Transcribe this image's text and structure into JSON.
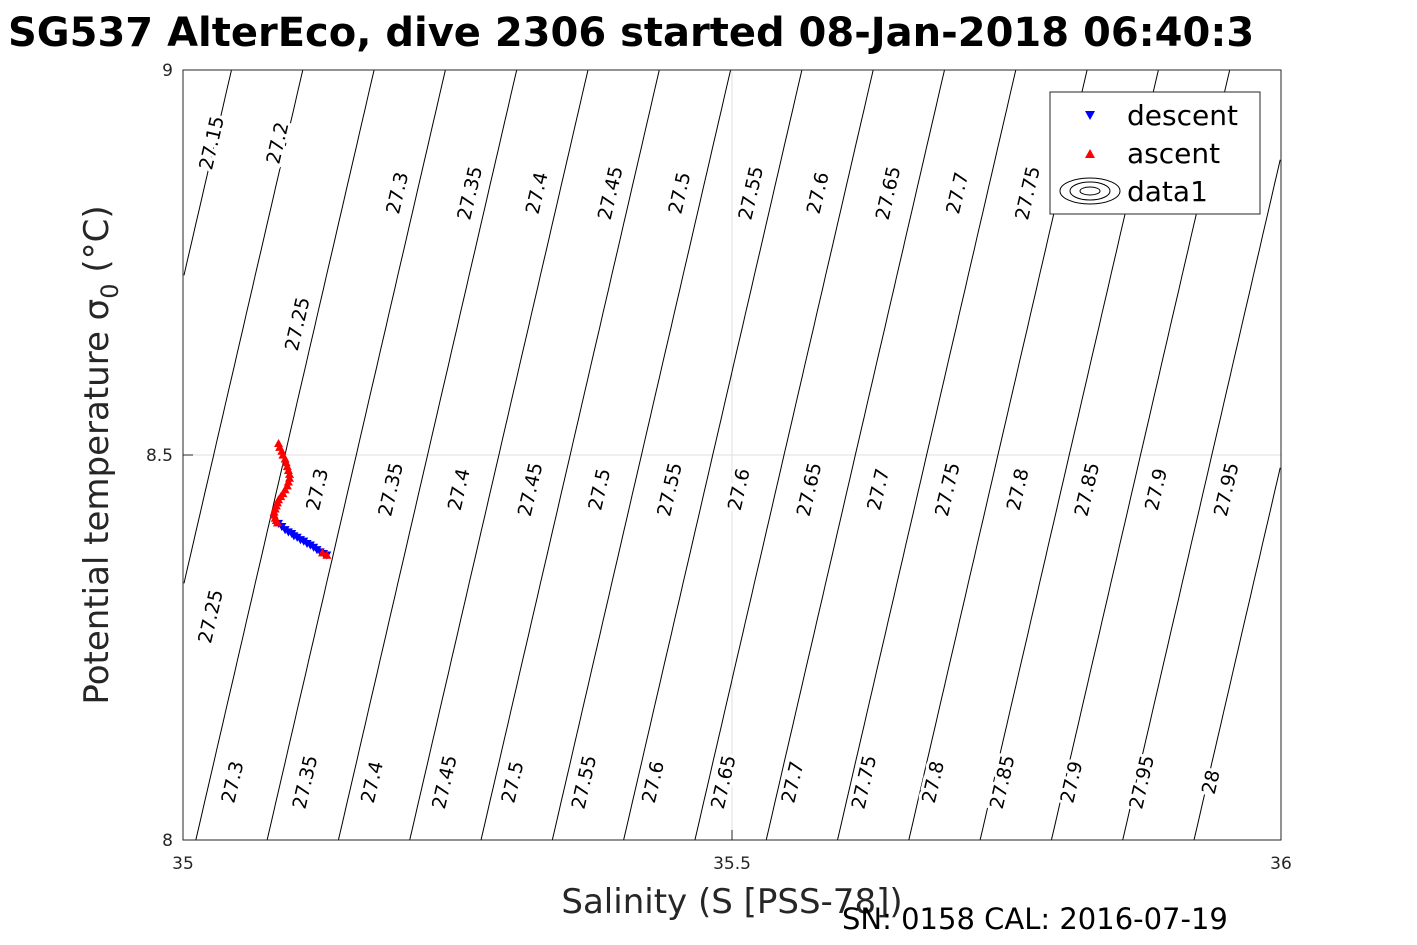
{
  "title": "SG537 AlterEco, dive 2306 started 08-Jan-2018 06:40:3",
  "footer": "SN: 0158  CAL: 2016-07-19",
  "colors": {
    "descent": "#0000ff",
    "ascent": "#ff0000",
    "contour": "#000000",
    "grid": "#dfdfdf"
  },
  "chart_data": {
    "type": "scatter",
    "xlabel": "Salinity (S [PSS-78])",
    "ylabel_main": "Potential temperature ",
    "ylabel_sigma": "σ",
    "ylabel_sub": "0",
    "ylabel_unit": " (°C)",
    "xlim": [
      35,
      36
    ],
    "ylim": [
      8,
      9
    ],
    "xticks": [
      35,
      35.5,
      36
    ],
    "xtick_labels": [
      "35",
      "35.5",
      "36"
    ],
    "yticks": [
      8,
      8.5,
      9
    ],
    "ytick_labels": [
      "8",
      "8.5",
      "9"
    ],
    "grid": true,
    "legend_position": "top-right",
    "legend": [
      {
        "label": "descent",
        "marker": "triangle-down",
        "color": "#0000ff"
      },
      {
        "label": "ascent",
        "marker": "triangle-up",
        "color": "#ff0000"
      },
      {
        "label": "data1",
        "marker": "contour"
      }
    ],
    "contour_levels": [
      27.15,
      27.2,
      27.25,
      27.3,
      27.35,
      27.4,
      27.45,
      27.5,
      27.55,
      27.6,
      27.65,
      27.7,
      27.75,
      27.8,
      27.85,
      27.9,
      27.95,
      28
    ],
    "contour_labels": [
      {
        "text": "27.15",
        "s": 35.027,
        "t": 8.905
      },
      {
        "text": "27.2",
        "s": 35.087,
        "t": 8.905
      },
      {
        "text": "27.3",
        "s": 35.196,
        "t": 8.84
      },
      {
        "text": "27.35",
        "s": 35.262,
        "t": 8.84
      },
      {
        "text": "27.4",
        "s": 35.323,
        "t": 8.84
      },
      {
        "text": "27.45",
        "s": 35.39,
        "t": 8.84
      },
      {
        "text": "27.5",
        "s": 35.453,
        "t": 8.84
      },
      {
        "text": "27.55",
        "s": 35.518,
        "t": 8.84
      },
      {
        "text": "27.6",
        "s": 35.579,
        "t": 8.84
      },
      {
        "text": "27.65",
        "s": 35.643,
        "t": 8.84
      },
      {
        "text": "27.7",
        "s": 35.706,
        "t": 8.84
      },
      {
        "text": "27.75",
        "s": 35.77,
        "t": 8.84
      },
      {
        "text": "27.25",
        "s": 35.105,
        "t": 8.67
      },
      {
        "text": "27.3",
        "s": 35.123,
        "t": 8.455
      },
      {
        "text": "27.35",
        "s": 35.19,
        "t": 8.455
      },
      {
        "text": "27.4",
        "s": 35.252,
        "t": 8.455
      },
      {
        "text": "27.45",
        "s": 35.317,
        "t": 8.455
      },
      {
        "text": "27.5",
        "s": 35.38,
        "t": 8.455
      },
      {
        "text": "27.55",
        "s": 35.444,
        "t": 8.455
      },
      {
        "text": "27.6",
        "s": 35.507,
        "t": 8.455
      },
      {
        "text": "27.65",
        "s": 35.571,
        "t": 8.455
      },
      {
        "text": "27.7",
        "s": 35.634,
        "t": 8.455
      },
      {
        "text": "27.75",
        "s": 35.697,
        "t": 8.455
      },
      {
        "text": "27.8",
        "s": 35.761,
        "t": 8.455
      },
      {
        "text": "27.85",
        "s": 35.824,
        "t": 8.455
      },
      {
        "text": "27.9",
        "s": 35.887,
        "t": 8.455
      },
      {
        "text": "27.95",
        "s": 35.951,
        "t": 8.455
      },
      {
        "text": "27.25",
        "s": 35.026,
        "t": 8.29
      },
      {
        "text": "27.3",
        "s": 35.046,
        "t": 8.075
      },
      {
        "text": "27.35",
        "s": 35.112,
        "t": 8.075
      },
      {
        "text": "27.4",
        "s": 35.173,
        "t": 8.075
      },
      {
        "text": "27.45",
        "s": 35.239,
        "t": 8.075
      },
      {
        "text": "27.5",
        "s": 35.301,
        "t": 8.075
      },
      {
        "text": "27.55",
        "s": 35.366,
        "t": 8.075
      },
      {
        "text": "27.6",
        "s": 35.429,
        "t": 8.075
      },
      {
        "text": "27.65",
        "s": 35.493,
        "t": 8.075
      },
      {
        "text": "27.7",
        "s": 35.556,
        "t": 8.075
      },
      {
        "text": "27.75",
        "s": 35.621,
        "t": 8.075
      },
      {
        "text": "27.8",
        "s": 35.684,
        "t": 8.075
      },
      {
        "text": "27.85",
        "s": 35.747,
        "t": 8.075
      },
      {
        "text": "27.9",
        "s": 35.81,
        "t": 8.075
      },
      {
        "text": "27.95",
        "s": 35.874,
        "t": 8.075
      },
      {
        "text": "28",
        "s": 35.937,
        "t": 8.075
      }
    ],
    "series": [
      {
        "name": "descent",
        "marker": "triangle-down",
        "color": "#0000ff",
        "x": [
          35.087,
          35.09,
          35.093,
          35.096,
          35.099,
          35.101,
          35.104,
          35.107,
          35.11,
          35.113,
          35.116,
          35.119,
          35.122,
          35.125,
          35.128,
          35.131
        ],
        "y": [
          8.411,
          8.407,
          8.403,
          8.4,
          8.398,
          8.395,
          8.393,
          8.39,
          8.388,
          8.385,
          8.383,
          8.38,
          8.377,
          8.374,
          8.372,
          8.37
        ]
      },
      {
        "name": "ascent",
        "marker": "triangle-up",
        "color": "#ff0000",
        "x": [
          35.087,
          35.088,
          35.09,
          35.091,
          35.093,
          35.094,
          35.095,
          35.096,
          35.097,
          35.097,
          35.096,
          35.095,
          35.093,
          35.091,
          35.089,
          35.087,
          35.086,
          35.085,
          35.084,
          35.083,
          35.083,
          35.084,
          35.085,
          35.086,
          35.127,
          35.131
        ],
        "y": [
          8.515,
          8.51,
          8.505,
          8.5,
          8.495,
          8.49,
          8.485,
          8.48,
          8.475,
          8.47,
          8.465,
          8.46,
          8.455,
          8.45,
          8.446,
          8.442,
          8.438,
          8.434,
          8.43,
          8.426,
          8.422,
          8.418,
          8.415,
          8.412,
          8.373,
          8.37
        ]
      }
    ]
  }
}
